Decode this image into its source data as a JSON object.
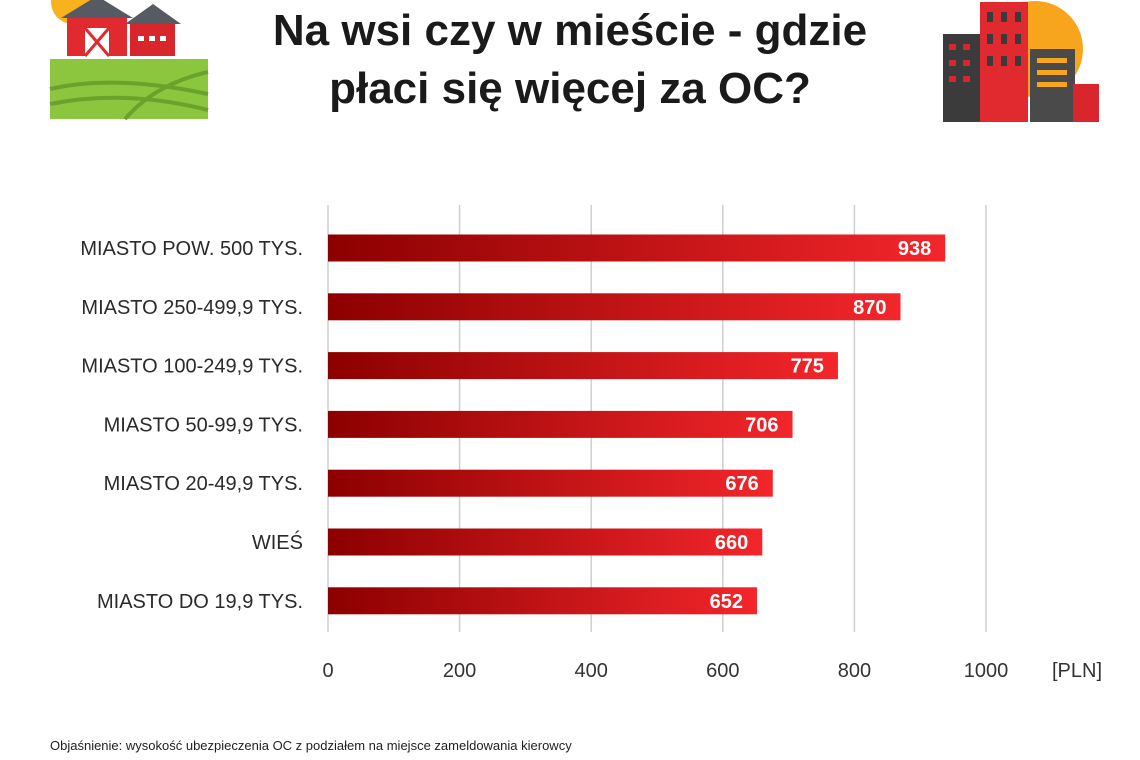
{
  "header": {
    "title_line1": "Na wsi czy w mieście - gdzie",
    "title_line2": "płaci się więcej za OC?"
  },
  "colors": {
    "bar_dark": "#8c0000",
    "bar_light": "#f3262b",
    "grid": "#cfcfcf",
    "text": "#1a1a1a"
  },
  "chart_data": {
    "type": "bar",
    "orientation": "horizontal",
    "categories": [
      "MIASTO POW. 500 TYS.",
      "MIASTO 250-499,9 TYS.",
      "MIASTO 100-249,9 TYS.",
      "MIASTO 50-99,9 TYS.",
      "MIASTO 20-49,9 TYS.",
      "WIEŚ",
      "MIASTO DO 19,9 TYS."
    ],
    "values": [
      938,
      870,
      775,
      706,
      676,
      660,
      652
    ],
    "unit_label": "[PLN]",
    "xlim": [
      0,
      1000
    ],
    "xticks": [
      0,
      200,
      400,
      600,
      800,
      1000
    ],
    "grid": true,
    "data_labels": true
  },
  "footnote": {
    "line1": "Objaśnienie: wysokość ubezpieczenia OC z podziałem na miejsce zameldowania kierowcy"
  }
}
